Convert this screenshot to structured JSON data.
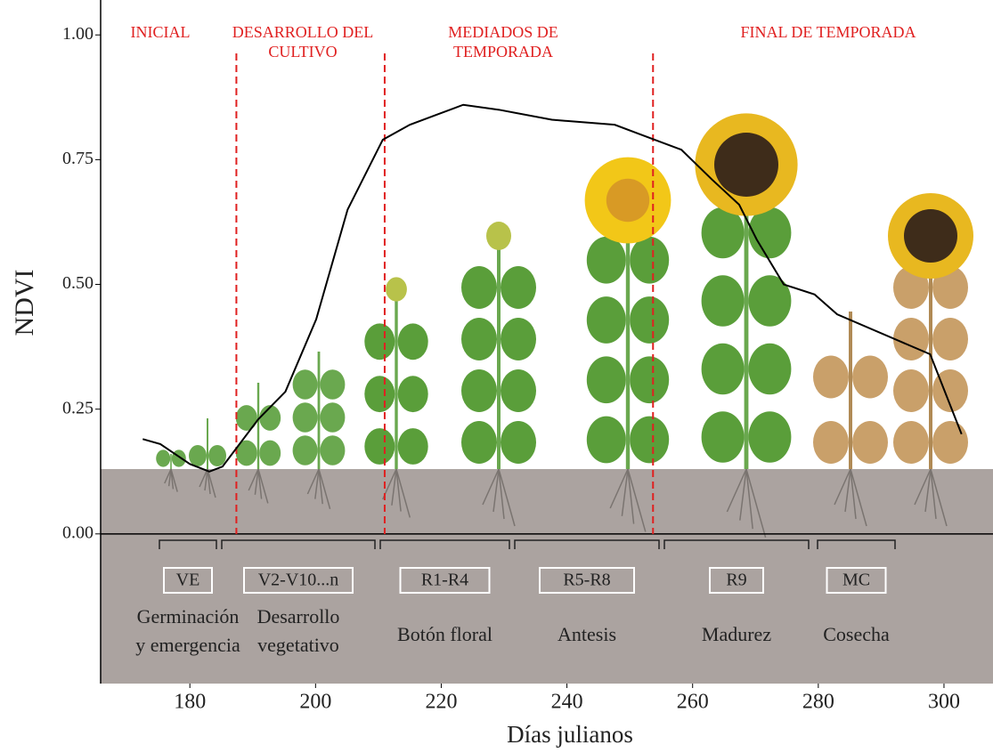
{
  "chart_data": {
    "type": "line",
    "ylabel": "NDVI",
    "xlabel": "Días julianos",
    "xlim": [
      165.8,
      307.8
    ],
    "ylim": [
      -0.3,
      1.07
    ],
    "xticks": [
      180,
      200,
      220,
      240,
      260,
      280,
      300
    ],
    "yticks": [
      {
        "value": 0,
        "label": "0.00"
      },
      {
        "value": 0.25,
        "label": "0.25"
      },
      {
        "value": 0.5,
        "label": "0.50"
      },
      {
        "value": 0.75,
        "label": "0.75"
      },
      {
        "value": 1,
        "label": "1.00"
      }
    ],
    "x": [
      172.5,
      175.3,
      180,
      183.1,
      185.2,
      190.9,
      195.2,
      200.1,
      205.1,
      210.7,
      215,
      223.5,
      229.2,
      237.6,
      247.6,
      251.8,
      258.2,
      263.1,
      267.4,
      270.2,
      274.5,
      279.4,
      283,
      297.8,
      302.8
    ],
    "series": [
      {
        "color": "#000000",
        "values": [
          0.19,
          0.18,
          0.14,
          0.125,
          0.135,
          0.23,
          0.285,
          0.43,
          0.65,
          0.79,
          0.82,
          0.86,
          0.85,
          0.83,
          0.82,
          0.8,
          0.77,
          0.71,
          0.66,
          0.59,
          0.5,
          0.48,
          0.44,
          0.36,
          0.2
        ]
      }
    ],
    "phase_lines": [
      187.4,
      211,
      253.7
    ],
    "phase_color": "#e02020",
    "phases": [
      [
        "INICIAL"
      ],
      [
        "DESARROLLO DEL",
        "CULTIVO"
      ],
      [
        "MEDIADOS DE",
        "TEMPORADA"
      ],
      [
        "FINAL DE TEMPORADA"
      ]
    ],
    "stages": [
      {
        "code": "VE",
        "description": [
          "Germinación",
          "y emergencia"
        ]
      },
      {
        "code": "V2-V10...n",
        "description": [
          "Desarrollo",
          "vegetativo"
        ]
      },
      {
        "code": "R1-R4",
        "description": [
          "Botón floral"
        ]
      },
      {
        "code": "R5-R8",
        "description": [
          "Antesis"
        ]
      },
      {
        "code": "R9",
        "description": [
          "Madurez"
        ]
      },
      {
        "code": "MC",
        "description": [
          "Cosecha"
        ]
      }
    ]
  }
}
